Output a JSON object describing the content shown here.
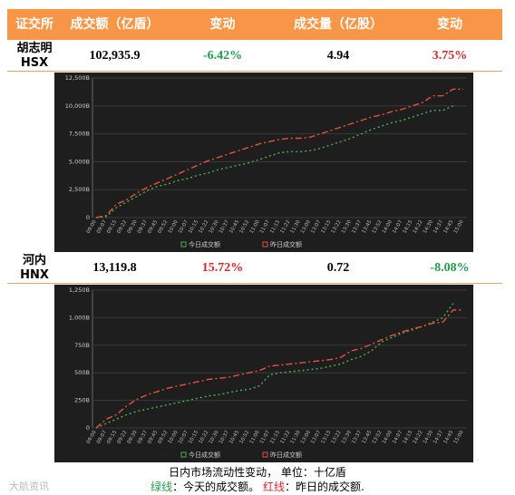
{
  "table": {
    "headers": [
      "证交所",
      "成交额（亿盾）",
      "变动",
      "成交量（亿股）",
      "变动"
    ],
    "rows": [
      {
        "exchange": [
          "胡志明",
          "HSX"
        ],
        "cells": [
          {
            "text": "102,935.9"
          },
          {
            "text": "-6.42%",
            "color": "#1fa04a"
          },
          {
            "text": "4.94"
          },
          {
            "text": "3.75%",
            "color": "#e0242b"
          }
        ]
      },
      {
        "exchange": [
          "河内",
          "HNX"
        ],
        "cells": [
          {
            "text": "13,119.8"
          },
          {
            "text": "15.72%",
            "color": "#e0242b"
          },
          {
            "text": "0.72"
          },
          {
            "text": "-8.08%",
            "color": "#1fa04a"
          }
        ]
      }
    ]
  },
  "chart_data": [
    {
      "type": "line",
      "categories": [
        "09:00",
        "09:07",
        "09:15",
        "09:22",
        "09:30",
        "09:37",
        "09:45",
        "09:52",
        "10:00",
        "10:07",
        "10:15",
        "10:22",
        "10:30",
        "10:37",
        "10:45",
        "10:52",
        "11:00",
        "11:07",
        "11:15",
        "11:22",
        "11:30",
        "13:00",
        "13:07",
        "13:15",
        "13:22",
        "13:30",
        "13:37",
        "13:45",
        "13:52",
        "14:00",
        "14:07",
        "14:15",
        "14:22",
        "14:30",
        "14:37",
        "14:45",
        "15:00"
      ],
      "series": [
        {
          "name": "今日成交额",
          "color": "#4caf50",
          "values": [
            0,
            100,
            900,
            1400,
            1900,
            2400,
            2800,
            3000,
            3300,
            3500,
            3800,
            4000,
            4300,
            4500,
            4700,
            4900,
            5200,
            5500,
            5800,
            5900,
            5900,
            6000,
            6200,
            6500,
            6800,
            7100,
            7500,
            7900,
            8200,
            8500,
            8700,
            9000,
            9300,
            9600,
            9600,
            10000,
            null
          ]
        },
        {
          "name": "昨日成交额",
          "color": "#e8503a",
          "values": [
            0,
            200,
            1200,
            1600,
            2200,
            2700,
            3100,
            3500,
            3900,
            4300,
            4700,
            5100,
            5400,
            5700,
            6000,
            6300,
            6600,
            6800,
            7000,
            7100,
            7100,
            7200,
            7500,
            7800,
            8100,
            8400,
            8700,
            9000,
            9200,
            9500,
            9700,
            10000,
            10300,
            10900,
            10900,
            11500,
            11500
          ]
        }
      ],
      "ylim": [
        0,
        12500
      ],
      "yticks": [
        0,
        {
          "value": 2500,
          "label": "2,500B"
        },
        {
          "value": 5000,
          "label": "5,000B"
        },
        {
          "value": 7500,
          "label": "7,500B"
        },
        {
          "value": 10000,
          "label": "10,000B"
        },
        {
          "value": 12500,
          "label": "12,500B"
        }
      ],
      "grid": true
    },
    {
      "type": "line",
      "categories": [
        "09:00",
        "09:07",
        "09:15",
        "09:22",
        "09:30",
        "09:37",
        "09:45",
        "09:52",
        "10:00",
        "10:07",
        "10:15",
        "10:22",
        "10:30",
        "10:37",
        "10:45",
        "10:52",
        "11:00",
        "11:07",
        "11:15",
        "11:22",
        "11:30",
        "13:00",
        "13:07",
        "13:15",
        "13:22",
        "13:30",
        "13:37",
        "13:45",
        "13:52",
        "14:00",
        "14:07",
        "14:15",
        "14:22",
        "14:30",
        "14:37",
        "14:45",
        "15:00"
      ],
      "series": [
        {
          "name": "今日成交额",
          "color": "#4caf50",
          "values": [
            0,
            40,
            80,
            120,
            150,
            170,
            190,
            210,
            230,
            250,
            270,
            290,
            300,
            320,
            340,
            350,
            380,
            480,
            500,
            510,
            520,
            530,
            540,
            560,
            580,
            620,
            650,
            700,
            780,
            820,
            860,
            890,
            920,
            960,
            1000,
            1130,
            null
          ]
        },
        {
          "name": "昨日成交额",
          "color": "#e8503a",
          "values": [
            0,
            80,
            120,
            200,
            260,
            300,
            330,
            360,
            380,
            400,
            420,
            440,
            450,
            460,
            480,
            500,
            520,
            560,
            570,
            580,
            590,
            600,
            610,
            620,
            640,
            700,
            720,
            760,
            800,
            840,
            870,
            900,
            920,
            950,
            960,
            1070,
            1070
          ]
        }
      ],
      "ylim": [
        0,
        1250
      ],
      "yticks": [
        0,
        {
          "value": 250,
          "label": "250B"
        },
        {
          "value": 500,
          "label": "500B"
        },
        {
          "value": 750,
          "label": "750B"
        },
        {
          "value": 1000,
          "label": "1,000B"
        },
        {
          "value": 1250,
          "label": "1,250B"
        }
      ],
      "grid": true
    }
  ],
  "caption": {
    "line1": "日内市场流动性变动， 单位：十亿盾",
    "line2": [
      {
        "text": "绿线",
        "color": "#1fa04a"
      },
      {
        "text": "：今天的成交额。 "
      },
      {
        "text": "红线",
        "color": "#e0242b"
      },
      {
        "text": "：昨日的成交额."
      }
    ]
  },
  "watermark": "大航资讯"
}
